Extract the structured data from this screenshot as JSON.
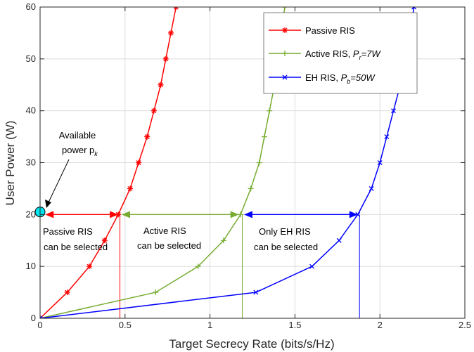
{
  "chart_data": {
    "type": "line",
    "xlabel": "Target Secrecy Rate (bits/s/Hz)",
    "ylabel": "User Power (W)",
    "xlim": [
      0,
      2.5
    ],
    "ylim": [
      0,
      60
    ],
    "xticks": [
      0,
      0.5,
      1,
      1.5,
      2,
      2.5
    ],
    "yticks": [
      0,
      10,
      20,
      30,
      40,
      50,
      60
    ],
    "xtick_labels": [
      "0",
      "0.5",
      "1",
      "1.5",
      "2",
      "2.5"
    ],
    "ytick_labels": [
      "0",
      "10",
      "20",
      "30",
      "40",
      "50",
      "60"
    ],
    "grid": true,
    "legend_position": "top-right",
    "series": [
      {
        "name": "Passive RIS",
        "name_sub": "",
        "name_tail": "",
        "color": "#ff0000",
        "marker": "asterisk",
        "x": [
          0,
          0.16,
          0.29,
          0.38,
          0.46,
          0.53,
          0.58,
          0.63,
          0.67,
          0.71,
          0.74,
          0.77,
          0.8
        ],
        "y": [
          0,
          5,
          10,
          15,
          20,
          25,
          30,
          35,
          40,
          45,
          50,
          55,
          60
        ]
      },
      {
        "name": "Active RIS, P",
        "name_sub": "r",
        "name_tail": "=7W",
        "color": "#77ac30",
        "marker": "plus",
        "x": [
          0,
          0.68,
          0.93,
          1.08,
          1.18,
          1.24,
          1.29,
          1.32,
          1.35,
          1.38,
          1.4,
          1.42,
          1.44
        ],
        "y": [
          0,
          5,
          10,
          15,
          20,
          25,
          30,
          35,
          40,
          45,
          50,
          55,
          60
        ]
      },
      {
        "name": "EH RIS, P",
        "name_sub": "b",
        "name_tail": "=50W",
        "color": "#0000ff",
        "marker": "cross",
        "x": [
          0,
          1.27,
          1.6,
          1.76,
          1.87,
          1.95,
          2.0,
          2.04,
          2.08,
          2.12,
          2.15,
          2.18,
          2.2
        ],
        "y": [
          0,
          5,
          10,
          15,
          20,
          25,
          30,
          35,
          40,
          45,
          50,
          55,
          60
        ]
      }
    ],
    "power_level": 20,
    "power_point": {
      "x": 0,
      "y": 20.5,
      "color": "#00e5ee"
    },
    "arrows": [
      {
        "x1": 0.03,
        "x2": 0.46,
        "color": "#ff0000"
      },
      {
        "x1": 0.48,
        "x2": 1.17,
        "color": "#77ac30"
      },
      {
        "x1": 1.2,
        "x2": 1.87,
        "color": "#0000ff"
      }
    ],
    "drop_lines": [
      {
        "x": 0.47,
        "color": "#ff0000"
      },
      {
        "x": 1.19,
        "color": "#77ac30"
      },
      {
        "x": 1.88,
        "color": "#0000ff"
      }
    ],
    "annotations": {
      "available_line1": "Available",
      "available_line2": "power p",
      "available_sub": "k",
      "passive_line1": "Passive RIS",
      "passive_line2": "can be selected",
      "active_line1": "Active RIS",
      "active_line2": "can be selected",
      "eh_line1": "Only EH RIS",
      "eh_line2": "can be selected"
    }
  }
}
